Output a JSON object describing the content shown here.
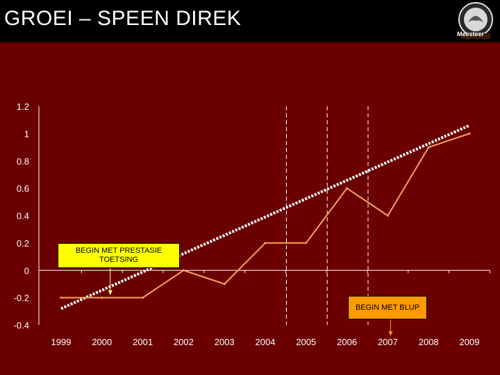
{
  "slide": {
    "title": "GROEI – SPEEN DIREK",
    "logo_text": "Meesteer"
  },
  "colors": {
    "background": "#6b0000",
    "title_bar": "#000000",
    "series_line": "#f4a460",
    "trend_line": "#ffffff",
    "callout_yellow": "#ffff00",
    "callout_orange": "#ff9900"
  },
  "callouts": [
    {
      "text": "BEGIN MET PRESTASIE TOETSING",
      "year": "2000"
    },
    {
      "text": "BEGIN MET BLUP",
      "year": "2007"
    }
  ],
  "chart_data": {
    "type": "line",
    "categories": [
      "1999",
      "2000",
      "2001",
      "2002",
      "2003",
      "2004",
      "2005",
      "2006",
      "2007",
      "2008",
      "2009"
    ],
    "series": [
      {
        "values": [
          -0.2,
          -0.2,
          -0.2,
          0.0,
          -0.1,
          0.2,
          0.2,
          0.6,
          0.4,
          0.9,
          1.0
        ],
        "style": "solid"
      },
      {
        "start": -0.28,
        "end": 1.06,
        "style": "dashed-trend"
      }
    ],
    "y_ticks": [
      "1.2",
      "1",
      "0.8",
      "0.6",
      "0.4",
      "0.2",
      "0",
      "-0.2",
      "-0.4"
    ],
    "ylim": [
      -0.4,
      1.2
    ],
    "vertical_markers": [
      "2005",
      "2006",
      "2007"
    ],
    "grid": false,
    "title": "",
    "xlabel": "",
    "ylabel": ""
  }
}
